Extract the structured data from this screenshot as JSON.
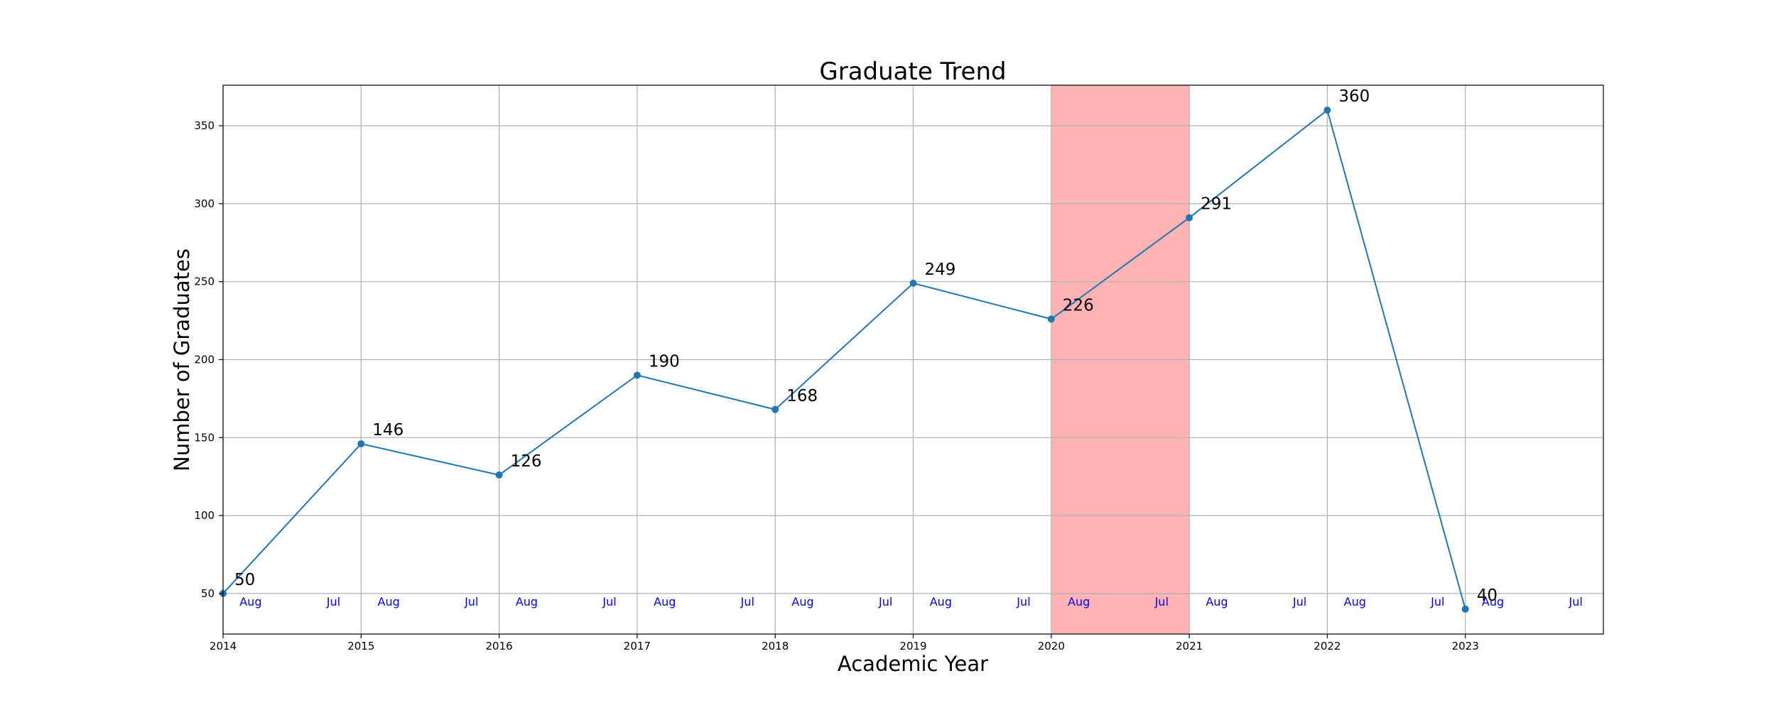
{
  "chart_data": {
    "type": "line",
    "title": "Graduate Trend",
    "xlabel": "Academic Year",
    "ylabel": "Number of Graduates",
    "x": [
      2014,
      2015,
      2016,
      2017,
      2018,
      2019,
      2020,
      2021,
      2022,
      2023
    ],
    "series": [
      {
        "values": [
          50,
          146,
          126,
          190,
          168,
          249,
          226,
          291,
          360,
          40
        ],
        "color": "#1f77b4"
      }
    ],
    "data_labels": [
      "50",
      "146",
      "126",
      "190",
      "168",
      "249",
      "226",
      "291",
      "360",
      "40"
    ],
    "xlim": [
      2014,
      2024
    ],
    "ylim": [
      24,
      376
    ],
    "x_ticks": [
      2014,
      2015,
      2016,
      2017,
      2018,
      2019,
      2020,
      2021,
      2022,
      2023
    ],
    "x_tick_labels": [
      "2014",
      "2015",
      "2016",
      "2017",
      "2018",
      "2019",
      "2020",
      "2021",
      "2022",
      "2023"
    ],
    "y_ticks": [
      50,
      100,
      150,
      200,
      250,
      300,
      350
    ],
    "y_tick_labels": [
      "50",
      "100",
      "150",
      "200",
      "250",
      "300",
      "350"
    ],
    "grid": true,
    "highlight_span": {
      "from": 2020,
      "to": 2021,
      "color": "#ffb3b3"
    },
    "month_annotations": {
      "color": "#0000ff",
      "y": 45,
      "items": [
        {
          "x": 2014.2,
          "text": "Aug"
        },
        {
          "x": 2014.8,
          "text": "Jul"
        },
        {
          "x": 2015.2,
          "text": "Aug"
        },
        {
          "x": 2015.8,
          "text": "Jul"
        },
        {
          "x": 2016.2,
          "text": "Aug"
        },
        {
          "x": 2016.8,
          "text": "Jul"
        },
        {
          "x": 2017.2,
          "text": "Aug"
        },
        {
          "x": 2017.8,
          "text": "Jul"
        },
        {
          "x": 2018.2,
          "text": "Aug"
        },
        {
          "x": 2018.8,
          "text": "Jul"
        },
        {
          "x": 2019.2,
          "text": "Aug"
        },
        {
          "x": 2019.8,
          "text": "Jul"
        },
        {
          "x": 2020.2,
          "text": "Aug"
        },
        {
          "x": 2020.8,
          "text": "Jul"
        },
        {
          "x": 2021.2,
          "text": "Aug"
        },
        {
          "x": 2021.8,
          "text": "Jul"
        },
        {
          "x": 2022.2,
          "text": "Aug"
        },
        {
          "x": 2022.8,
          "text": "Jul"
        },
        {
          "x": 2023.2,
          "text": "Aug"
        },
        {
          "x": 2023.8,
          "text": "Jul"
        }
      ]
    }
  }
}
